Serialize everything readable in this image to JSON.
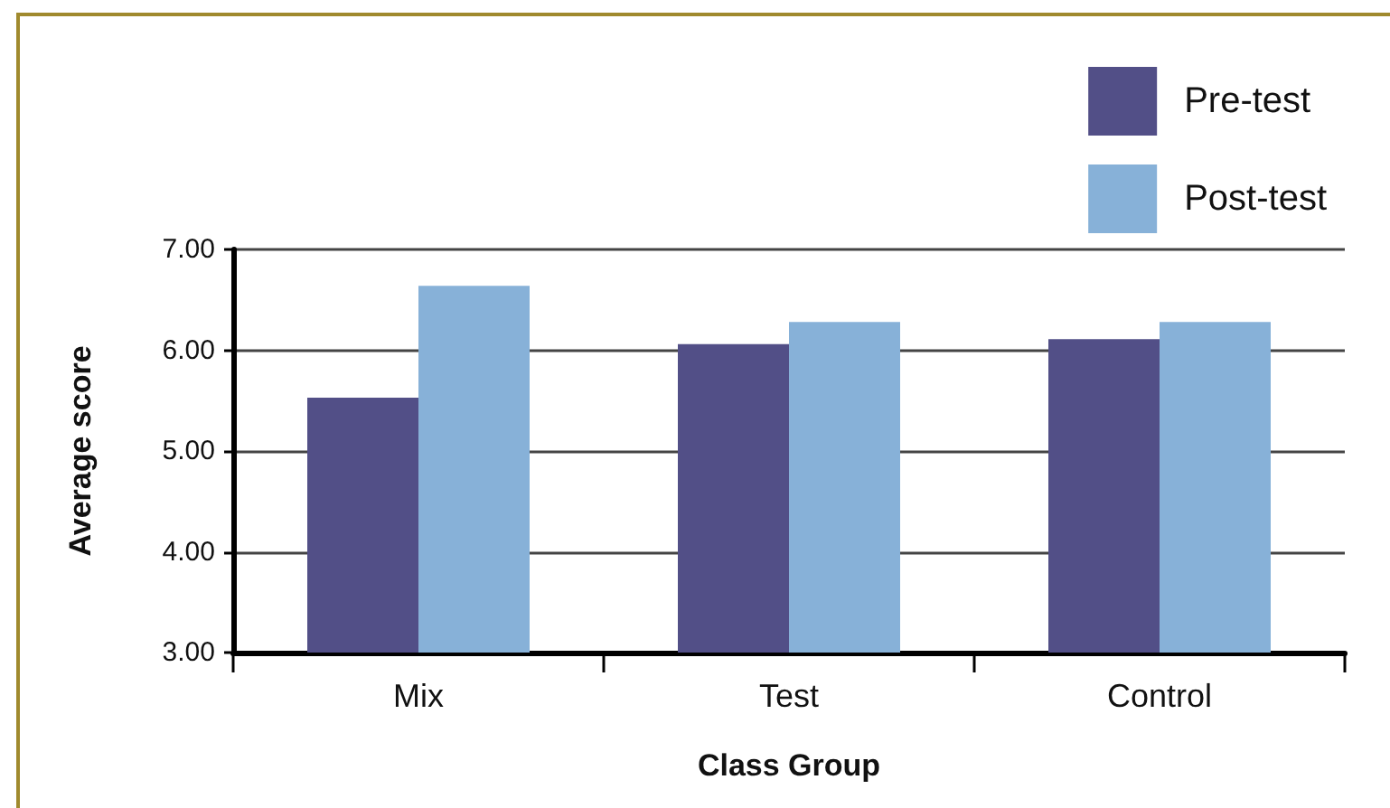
{
  "chart_data": {
    "type": "bar",
    "categories": [
      "Mix",
      "Test",
      "Control"
    ],
    "series": [
      {
        "name": "Pre-test",
        "color": "#524f87",
        "values": [
          5.53,
          6.06,
          6.11
        ]
      },
      {
        "name": "Post-test",
        "color": "#87b1d8",
        "values": [
          6.64,
          6.28,
          6.28
        ]
      }
    ],
    "xlabel": "Class Group",
    "ylabel": "Average score",
    "ylim": [
      3,
      7
    ],
    "yticks": [
      {
        "value": 3,
        "label": "3.00"
      },
      {
        "value": 4,
        "label": "4.00"
      },
      {
        "value": 5,
        "label": "5.00"
      },
      {
        "value": 6,
        "label": "6.00"
      },
      {
        "value": 7,
        "label": "7.00"
      }
    ],
    "grid": "y",
    "legend": "top right"
  }
}
